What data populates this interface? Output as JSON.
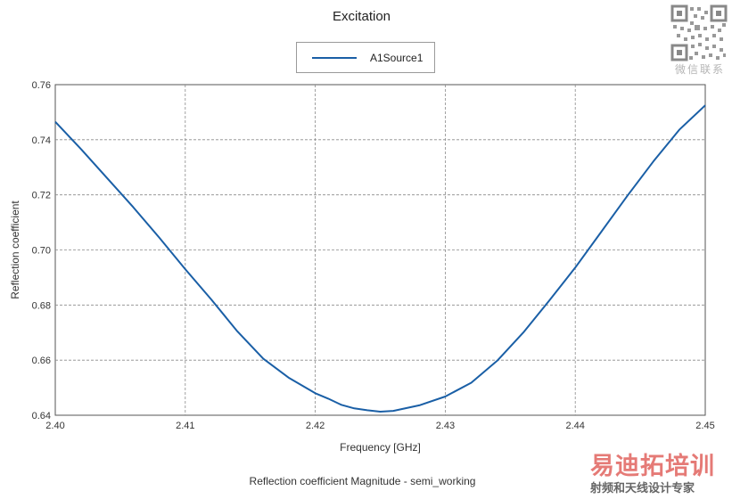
{
  "watermark": {
    "qr_caption": "微信联系",
    "logo_text": "易迪拓培训",
    "logo_subtitle": "射频和天线设计专家"
  },
  "colors": {
    "series": "#1a5fa6",
    "grid": "#8a8a8a",
    "axis": "#555555"
  },
  "chart_data": {
    "type": "line",
    "title": "Excitation",
    "xlabel": "Frequency [GHz]",
    "ylabel": "Reflection coefficient",
    "caption": "Reflection coefficient Magnitude - semi_working",
    "xlim": [
      2.4,
      2.45
    ],
    "ylim": [
      0.64,
      0.76
    ],
    "xticks": [
      "2.40",
      "2.41",
      "2.42",
      "2.43",
      "2.44",
      "2.45"
    ],
    "yticks": [
      "0.64",
      "0.66",
      "0.68",
      "0.70",
      "0.72",
      "0.74",
      "0.76"
    ],
    "grid": true,
    "legend_position": "top-center",
    "series": [
      {
        "name": "A1Source1",
        "x": [
          2.4,
          2.402,
          2.404,
          2.406,
          2.408,
          2.41,
          2.412,
          2.414,
          2.416,
          2.418,
          2.42,
          2.421,
          2.422,
          2.423,
          2.424,
          2.425,
          2.426,
          2.428,
          2.43,
          2.432,
          2.434,
          2.436,
          2.438,
          2.44,
          2.442,
          2.444,
          2.446,
          2.448,
          2.45
        ],
        "y": [
          0.7465,
          0.7365,
          0.726,
          0.7155,
          0.7045,
          0.693,
          0.682,
          0.6705,
          0.6605,
          0.6535,
          0.648,
          0.646,
          0.6438,
          0.6425,
          0.6418,
          0.6413,
          0.6416,
          0.6436,
          0.6468,
          0.6518,
          0.6598,
          0.67,
          0.6816,
          0.6936,
          0.7066,
          0.7196,
          0.7321,
          0.7436,
          0.7525
        ]
      }
    ]
  }
}
